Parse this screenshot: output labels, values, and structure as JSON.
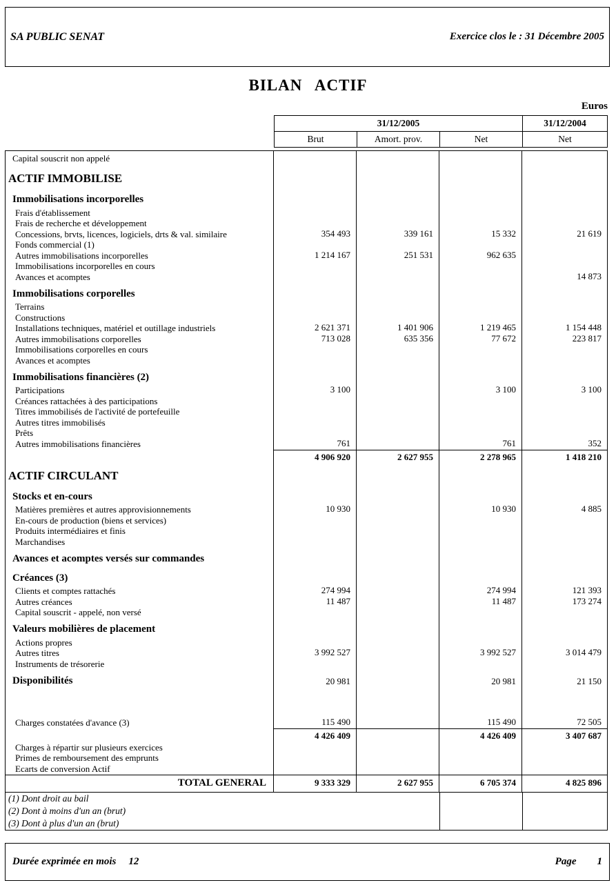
{
  "header": {
    "company": "SA PUBLIC SENAT",
    "closing_label": "Exercice clos le :  31 Décembre 2005"
  },
  "title": "BILAN  ACTIF",
  "currency": "Euros",
  "table": {
    "group_2005": "31/12/2005",
    "group_2004": "31/12/2004",
    "columns": [
      "Brut",
      "Amort. prov.",
      "Net",
      "Net"
    ],
    "rows": [
      {
        "style": "plain",
        "label": "Capital souscrit non appelé",
        "values": [
          "",
          "",
          "",
          ""
        ]
      },
      {
        "style": "section",
        "label": "ACTIF IMMOBILISE",
        "values": [
          "",
          "",
          "",
          ""
        ]
      },
      {
        "style": "subsection",
        "label": "Immobilisations incorporelles",
        "values": [
          "",
          "",
          "",
          ""
        ]
      },
      {
        "style": "item",
        "label": "Frais d'établissement",
        "values": [
          "",
          "",
          "",
          ""
        ]
      },
      {
        "style": "item",
        "label": "Frais de recherche et développement",
        "values": [
          "",
          "",
          "",
          ""
        ]
      },
      {
        "style": "item",
        "label": "Concessions, brvts, licences, logiciels, drts & val. similaire",
        "values": [
          "354 493",
          "339 161",
          "15 332",
          "21 619"
        ]
      },
      {
        "style": "item",
        "label": "Fonds commercial (1)",
        "values": [
          "",
          "",
          "",
          ""
        ]
      },
      {
        "style": "item",
        "label": "Autres immobilisations incorporelles",
        "values": [
          "1 214 167",
          "251 531",
          "962 635",
          ""
        ]
      },
      {
        "style": "item",
        "label": "Immobilisations incorporelles en cours",
        "values": [
          "",
          "",
          "",
          ""
        ]
      },
      {
        "style": "item",
        "label": "Avances et acomptes",
        "values": [
          "",
          "",
          "",
          "14 873"
        ]
      },
      {
        "style": "subsection",
        "label": "Immobilisations corporelles",
        "values": [
          "",
          "",
          "",
          ""
        ]
      },
      {
        "style": "item",
        "label": "Terrains",
        "values": [
          "",
          "",
          "",
          ""
        ]
      },
      {
        "style": "item",
        "label": "Constructions",
        "values": [
          "",
          "",
          "",
          ""
        ]
      },
      {
        "style": "item",
        "label": "Installations techniques, matériel et outillage industriels",
        "values": [
          "2 621 371",
          "1 401 906",
          "1 219 465",
          "1 154 448"
        ]
      },
      {
        "style": "item",
        "label": "Autres immobilisations corporelles",
        "values": [
          "713 028",
          "635 356",
          "77 672",
          "223 817"
        ]
      },
      {
        "style": "item",
        "label": "Immobilisations corporelles en cours",
        "values": [
          "",
          "",
          "",
          ""
        ]
      },
      {
        "style": "item",
        "label": "Avances et acomptes",
        "values": [
          "",
          "",
          "",
          ""
        ]
      },
      {
        "style": "subsection",
        "label": "Immobilisations financières (2)",
        "values": [
          "",
          "",
          "",
          ""
        ]
      },
      {
        "style": "item",
        "label": "Participations",
        "values": [
          "3 100",
          "",
          "3 100",
          "3 100"
        ]
      },
      {
        "style": "item",
        "label": "Créances rattachées à des participations",
        "values": [
          "",
          "",
          "",
          ""
        ]
      },
      {
        "style": "item",
        "label": "Titres immobilisés de l'activité de portefeuille",
        "values": [
          "",
          "",
          "",
          ""
        ]
      },
      {
        "style": "item",
        "label": "Autres titres immobilisés",
        "values": [
          "",
          "",
          "",
          ""
        ]
      },
      {
        "style": "item",
        "label": "Prêts",
        "values": [
          "",
          "",
          "",
          ""
        ]
      },
      {
        "style": "item",
        "label": "Autres immobilisations financières",
        "values": [
          "761",
          "",
          "761",
          "352"
        ]
      },
      {
        "style": "subtotal",
        "label": "",
        "values": [
          "4 906 920",
          "2 627 955",
          "2 278 965",
          "1 418 210"
        ]
      },
      {
        "style": "section",
        "label": "ACTIF CIRCULANT",
        "values": [
          "",
          "",
          "",
          ""
        ]
      },
      {
        "style": "subsection",
        "label": "Stocks et en-cours",
        "values": [
          "",
          "",
          "",
          ""
        ]
      },
      {
        "style": "item",
        "label": "Matières premières et autres approvisionnements",
        "values": [
          "10 930",
          "",
          "10 930",
          "4 885"
        ]
      },
      {
        "style": "item",
        "label": "En-cours de production (biens et services)",
        "values": [
          "",
          "",
          "",
          ""
        ]
      },
      {
        "style": "item",
        "label": "Produits intermédiaires et finis",
        "values": [
          "",
          "",
          "",
          ""
        ]
      },
      {
        "style": "item",
        "label": "Marchandises",
        "values": [
          "",
          "",
          "",
          ""
        ]
      },
      {
        "style": "subsection",
        "label": "Avances et acomptes versés sur commandes",
        "values": [
          "",
          "",
          "",
          ""
        ]
      },
      {
        "style": "subsection",
        "label": "Créances (3)",
        "values": [
          "",
          "",
          "",
          ""
        ]
      },
      {
        "style": "item",
        "label": "Clients et comptes rattachés",
        "values": [
          "274 994",
          "",
          "274 994",
          "121 393"
        ]
      },
      {
        "style": "item",
        "label": "Autres créances",
        "values": [
          "11 487",
          "",
          "11 487",
          "173 274"
        ]
      },
      {
        "style": "item",
        "label": "Capital souscrit - appelé, non versé",
        "values": [
          "",
          "",
          "",
          ""
        ]
      },
      {
        "style": "subsection",
        "label": "Valeurs mobilières de placement",
        "values": [
          "",
          "",
          "",
          ""
        ]
      },
      {
        "style": "item",
        "label": "Actions propres",
        "values": [
          "",
          "",
          "",
          ""
        ]
      },
      {
        "style": "item",
        "label": "Autres titres",
        "values": [
          "3 992 527",
          "",
          "3 992 527",
          "3 014 479"
        ]
      },
      {
        "style": "item",
        "label": "Instruments de trésorerie",
        "values": [
          "",
          "",
          "",
          ""
        ]
      },
      {
        "style": "subsection",
        "label": "Disponibilités",
        "values": [
          "20 981",
          "",
          "20 981",
          "21 150"
        ]
      },
      {
        "style": "blank",
        "label": "",
        "values": [
          "",
          "",
          "",
          ""
        ]
      },
      {
        "style": "item",
        "label": "Charges constatées d'avance (3)",
        "values": [
          "115 490",
          "",
          "115 490",
          "72 505"
        ]
      },
      {
        "style": "subtotal",
        "label": "",
        "values": [
          "4 426 409",
          "",
          "4 426 409",
          "3 407 687"
        ]
      },
      {
        "style": "item",
        "label": "Charges à répartir sur plusieurs exercices",
        "values": [
          "",
          "",
          "",
          ""
        ]
      },
      {
        "style": "item",
        "label": "Primes de remboursement des emprunts",
        "values": [
          "",
          "",
          "",
          ""
        ]
      },
      {
        "style": "item",
        "label": "Ecarts de conversion Actif",
        "values": [
          "",
          "",
          "",
          ""
        ]
      },
      {
        "style": "total",
        "label": "TOTAL GENERAL",
        "values": [
          "9 333 329",
          "2 627 955",
          "6 705 374",
          "4 825 896"
        ]
      }
    ]
  },
  "notes": [
    "(1) Dont droit au bail",
    "(2) Dont à moins d'un an (brut)",
    "(3) Dont à plus d'un an (brut)"
  ],
  "footer": {
    "duration_label": "Durée exprimée en mois",
    "duration_value": "12",
    "page_label": "Page",
    "page_value": "1"
  }
}
